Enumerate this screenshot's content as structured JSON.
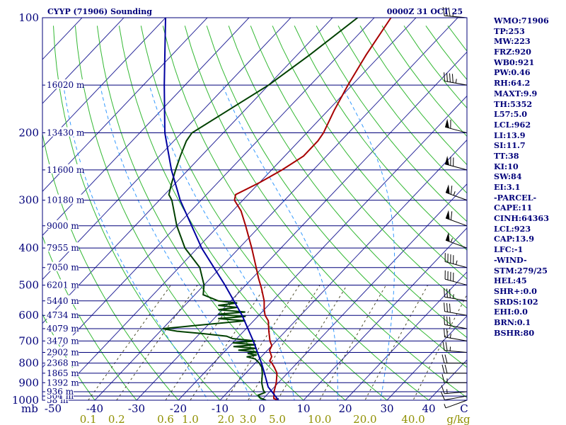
{
  "header": {
    "station": "CYYP (71906) Sounding",
    "time": "0000Z 31 OCT 25"
  },
  "chart_data": {
    "type": "skew-t",
    "title": "CYYP (71906) Sounding",
    "subtitle": "0000Z 31 OCT 25",
    "y_unit": "mb",
    "x_unit": "C",
    "mixing_ratio_unit": "g/kg",
    "pressure_ticks": [
      100,
      200,
      300,
      400,
      500,
      600,
      700,
      800,
      900,
      1000
    ],
    "temperature_ticks": [
      -50,
      -40,
      -30,
      -20,
      -10,
      0,
      10,
      20,
      30,
      40
    ],
    "mixing_ratio_ticks": [
      "0.1",
      "0.2",
      "0.6",
      "1.0",
      "2.0",
      "3.0",
      "5.0",
      "10.0",
      "20.0",
      "40.0"
    ],
    "height_labels": [
      {
        "p": 1000,
        "label": "58 m"
      },
      {
        "p": 975,
        "label": "504 m"
      },
      {
        "p": 950,
        "label": "936 m"
      },
      {
        "p": 900,
        "label": "1392 m"
      },
      {
        "p": 850,
        "label": "1865 m"
      },
      {
        "p": 800,
        "label": "2368 m"
      },
      {
        "p": 750,
        "label": "2902 m"
      },
      {
        "p": 700,
        "label": "3470 m"
      },
      {
        "p": 650,
        "label": "4079 m"
      },
      {
        "p": 600,
        "label": "4734 m"
      },
      {
        "p": 550,
        "label": "5440 m"
      },
      {
        "p": 500,
        "label": "6201 m"
      },
      {
        "p": 450,
        "label": "7050 m"
      },
      {
        "p": 400,
        "label": "7955 m"
      },
      {
        "p": 350,
        "label": "9000 m"
      },
      {
        "p": 300,
        "label": "10180 m"
      },
      {
        "p": 250,
        "label": "11600 m"
      },
      {
        "p": 200,
        "label": "13430 m"
      },
      {
        "p": 150,
        "label": "16020 m"
      }
    ],
    "series": [
      {
        "name": "temperature",
        "color": "#a80000",
        "points": [
          {
            "p": 1000,
            "t": 4.0
          },
          {
            "p": 990,
            "t": 2.5
          },
          {
            "p": 950,
            "t": 1.0
          },
          {
            "p": 900,
            "t": -0.5
          },
          {
            "p": 850,
            "t": -2.5
          },
          {
            "p": 820,
            "t": -4.5
          },
          {
            "p": 800,
            "t": -6.0
          },
          {
            "p": 790,
            "t": -7.0
          },
          {
            "p": 770,
            "t": -7.5
          },
          {
            "p": 740,
            "t": -9.5
          },
          {
            "p": 720,
            "t": -10.0
          },
          {
            "p": 700,
            "t": -11.5
          },
          {
            "p": 660,
            "t": -14.0
          },
          {
            "p": 620,
            "t": -16.5
          },
          {
            "p": 600,
            "t": -18.5
          },
          {
            "p": 580,
            "t": -20.0
          },
          {
            "p": 550,
            "t": -22.0
          },
          {
            "p": 510,
            "t": -25.5
          },
          {
            "p": 480,
            "t": -28.5
          },
          {
            "p": 450,
            "t": -31.5
          },
          {
            "p": 400,
            "t": -37.0
          },
          {
            "p": 350,
            "t": -43.5
          },
          {
            "p": 320,
            "t": -48.0
          },
          {
            "p": 300,
            "t": -52.0
          },
          {
            "p": 290,
            "t": -53.0
          },
          {
            "p": 270,
            "t": -50.0
          },
          {
            "p": 250,
            "t": -47.5
          },
          {
            "p": 230,
            "t": -45.5
          },
          {
            "p": 210,
            "t": -45.5
          },
          {
            "p": 200,
            "t": -46.0
          },
          {
            "p": 175,
            "t": -48.5
          },
          {
            "p": 150,
            "t": -51.0
          },
          {
            "p": 125,
            "t": -53.5
          },
          {
            "p": 100,
            "t": -56.0
          }
        ]
      },
      {
        "name": "dewpoint",
        "color": "#004000",
        "points": [
          {
            "p": 1000,
            "t": 1.0
          },
          {
            "p": 985,
            "t": -1.0
          },
          {
            "p": 970,
            "t": -2.0
          },
          {
            "p": 955,
            "t": -1.0
          },
          {
            "p": 940,
            "t": -2.0
          },
          {
            "p": 900,
            "t": -4.0
          },
          {
            "p": 850,
            "t": -6.0
          },
          {
            "p": 820,
            "t": -7.5
          },
          {
            "p": 800,
            "t": -9.0
          },
          {
            "p": 780,
            "t": -11.0
          },
          {
            "p": 770,
            "t": -13.5
          },
          {
            "p": 762,
            "t": -11.5
          },
          {
            "p": 755,
            "t": -14.0
          },
          {
            "p": 748,
            "t": -12.0
          },
          {
            "p": 740,
            "t": -17.0
          },
          {
            "p": 732,
            "t": -13.0
          },
          {
            "p": 724,
            "t": -19.0
          },
          {
            "p": 716,
            "t": -14.0
          },
          {
            "p": 708,
            "t": -20.0
          },
          {
            "p": 700,
            "t": -15.0
          },
          {
            "p": 690,
            "t": -21.0
          },
          {
            "p": 680,
            "t": -23.0
          },
          {
            "p": 670,
            "t": -29.0
          },
          {
            "p": 660,
            "t": -36.0
          },
          {
            "p": 650,
            "t": -40.0
          },
          {
            "p": 640,
            "t": -34.0
          },
          {
            "p": 620,
            "t": -22.0
          },
          {
            "p": 612,
            "t": -29.0
          },
          {
            "p": 604,
            "t": -23.0
          },
          {
            "p": 596,
            "t": -30.0
          },
          {
            "p": 588,
            "t": -24.0
          },
          {
            "p": 580,
            "t": -31.0
          },
          {
            "p": 572,
            "t": -27.0
          },
          {
            "p": 565,
            "t": -32.0
          },
          {
            "p": 557,
            "t": -28.0
          },
          {
            "p": 550,
            "t": -33.0
          },
          {
            "p": 530,
            "t": -38.0
          },
          {
            "p": 500,
            "t": -40.0
          },
          {
            "p": 450,
            "t": -45.0
          },
          {
            "p": 400,
            "t": -53.0
          },
          {
            "p": 350,
            "t": -60.0
          },
          {
            "p": 300,
            "t": -67.0
          },
          {
            "p": 290,
            "t": -69.0
          },
          {
            "p": 270,
            "t": -71.0
          },
          {
            "p": 250,
            "t": -73.0
          },
          {
            "p": 230,
            "t": -75.0
          },
          {
            "p": 210,
            "t": -77.0
          },
          {
            "p": 200,
            "t": -77.5
          },
          {
            "p": 175,
            "t": -74.0
          },
          {
            "p": 150,
            "t": -70.0
          },
          {
            "p": 125,
            "t": -67.0
          },
          {
            "p": 100,
            "t": -64.0
          }
        ]
      },
      {
        "name": "parcel",
        "color": "#0000a0",
        "points": [
          {
            "p": 1000,
            "t": 4.0
          },
          {
            "p": 923,
            "t": -1.5
          },
          {
            "p": 850,
            "t": -5.5
          },
          {
            "p": 800,
            "t": -8.5
          },
          {
            "p": 700,
            "t": -15.5
          },
          {
            "p": 600,
            "t": -24.0
          },
          {
            "p": 500,
            "t": -35.0
          },
          {
            "p": 400,
            "t": -49.0
          },
          {
            "p": 300,
            "t": -65.0
          },
          {
            "p": 250,
            "t": -74.0
          },
          {
            "p": 200,
            "t": -84.0
          },
          {
            "p": 150,
            "t": -95.0
          },
          {
            "p": 100,
            "t": -110.0
          }
        ]
      }
    ],
    "wind_barbs": [
      {
        "p": 1000,
        "dir": 250,
        "spd": 5
      },
      {
        "p": 975,
        "dir": 260,
        "spd": 10
      },
      {
        "p": 950,
        "dir": 265,
        "spd": 15
      },
      {
        "p": 900,
        "dir": 270,
        "spd": 15
      },
      {
        "p": 850,
        "dir": 270,
        "spd": 20
      },
      {
        "p": 800,
        "dir": 270,
        "spd": 20
      },
      {
        "p": 750,
        "dir": 275,
        "spd": 25
      },
      {
        "p": 700,
        "dir": 280,
        "spd": 25
      },
      {
        "p": 650,
        "dir": 280,
        "spd": 30
      },
      {
        "p": 600,
        "dir": 280,
        "spd": 30
      },
      {
        "p": 550,
        "dir": 280,
        "spd": 35
      },
      {
        "p": 500,
        "dir": 285,
        "spd": 40
      },
      {
        "p": 450,
        "dir": 285,
        "spd": 45
      },
      {
        "p": 400,
        "dir": 290,
        "spd": 55
      },
      {
        "p": 350,
        "dir": 290,
        "spd": 60
      },
      {
        "p": 300,
        "dir": 290,
        "spd": 65
      },
      {
        "p": 250,
        "dir": 285,
        "spd": 70
      },
      {
        "p": 200,
        "dir": 285,
        "spd": 60
      },
      {
        "p": 150,
        "dir": 280,
        "spd": 45
      },
      {
        "p": 100,
        "dir": 275,
        "spd": 35
      }
    ],
    "colors": {
      "isobar": "#00007a",
      "isotherm": "#2a2a9a",
      "dry_adiabat": "#33b833",
      "moist_adiabat": "#3399ff",
      "mixing_ratio": "#4a4a2a",
      "axis_text": "#00007a",
      "mixing_text": "#909000"
    }
  },
  "indices": [
    "WMO:71906",
    "TP:253",
    "MW:223",
    "FRZ:920",
    "WB0:921",
    "PW:0.46",
    "RH:64.2",
    "MAXT:9.9",
    "TH:5352",
    "L57:5.0",
    "LCL:962",
    "LI:13.9",
    "SI:11.7",
    "TT:38",
    "KI:10",
    "SW:84",
    "EI:3.1",
    "-PARCEL-",
    "CAPE:11",
    "CINH:64363",
    "LCL:923",
    "CAP:13.9",
    "LFC:-1",
    "-WIND-",
    "STM:279/25",
    "HEL:45",
    "SHR+:0.0",
    "SRDS:102",
    "EHI:0.0",
    "BRN:0.1",
    "BSHR:80"
  ]
}
